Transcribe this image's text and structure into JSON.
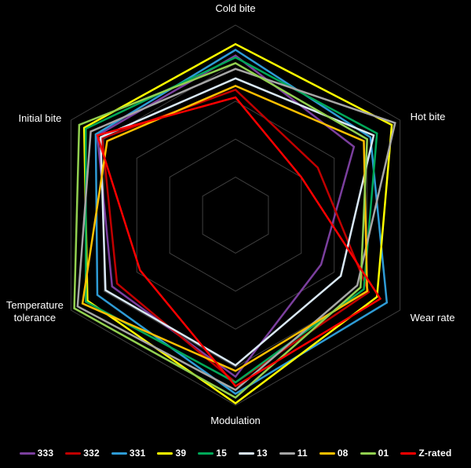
{
  "chart_data": {
    "type": "radar",
    "title": "",
    "background_color": "#000000",
    "grid_color": "#3f3f3f",
    "label_color": "#ffffff",
    "grid_shape": "hexagon",
    "legend_position": "bottom",
    "scale": {
      "min": 0,
      "max": 5,
      "rings": 5
    },
    "axes": [
      "Cold bite",
      "Hot bite",
      "Wear rate",
      "Modulation",
      "Temperature tolerance",
      "Initial bite"
    ],
    "series": [
      {
        "name": "333",
        "color": "#7B3F9E",
        "values": [
          4.2,
          3.6,
          2.6,
          4.25,
          3.75,
          4.2
        ]
      },
      {
        "name": "332",
        "color": "#C00000",
        "values": [
          3.3,
          2.5,
          4.05,
          4.4,
          3.6,
          4.05
        ]
      },
      {
        "name": "331",
        "color": "#2E9BD5",
        "values": [
          4.35,
          4.1,
          4.6,
          4.7,
          4.2,
          4.25
        ]
      },
      {
        "name": "39",
        "color": "#FFFF00",
        "values": [
          4.5,
          4.75,
          4.3,
          4.95,
          4.5,
          4.6
        ]
      },
      {
        "name": "15",
        "color": "#00A859",
        "values": [
          4.15,
          4.3,
          3.9,
          4.4,
          4.55,
          4.55
        ]
      },
      {
        "name": "13",
        "color": "#D9E8F5",
        "values": [
          3.6,
          4.2,
          3.2,
          3.95,
          3.95,
          4.1
        ]
      },
      {
        "name": "11",
        "color": "#A6A6A6",
        "values": [
          3.85,
          4.85,
          3.7,
          4.6,
          4.8,
          4.4
        ]
      },
      {
        "name": "08",
        "color": "#FFC000",
        "values": [
          3.4,
          3.9,
          4.0,
          4.1,
          4.65,
          3.9
        ]
      },
      {
        "name": "01",
        "color": "#92D050",
        "values": [
          4.0,
          4.0,
          3.8,
          4.8,
          4.9,
          4.75
        ]
      },
      {
        "name": "Z-rated",
        "color": "#FF0000",
        "values": [
          3.1,
          2.0,
          4.4,
          4.5,
          2.9,
          4.2
        ]
      }
    ]
  }
}
